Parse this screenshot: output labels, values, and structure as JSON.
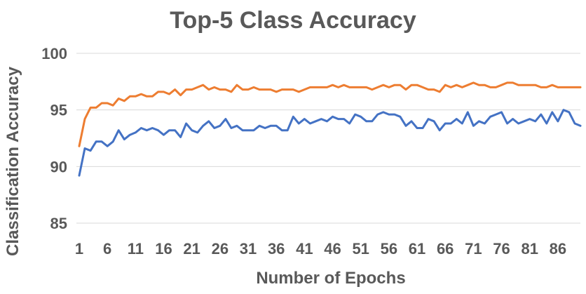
{
  "chart_data": {
    "type": "line",
    "title": "Top-5 Class Accuracy",
    "xlabel": "Number of Epochs",
    "ylabel": "Classification Accuracy",
    "ylim": [
      85,
      100
    ],
    "yticks": [
      "85",
      "90",
      "95",
      "100"
    ],
    "xtick_labels": [
      "1",
      "6",
      "11",
      "16",
      "21",
      "26",
      "31",
      "36",
      "41",
      "46",
      "51",
      "56",
      "61",
      "66",
      "71",
      "76",
      "81",
      "86"
    ],
    "grid": true,
    "legend": "none",
    "x_start": 1,
    "x_end": 90,
    "series": [
      {
        "color": "#ED7D31",
        "values": [
          91.8,
          94.2,
          95.2,
          95.2,
          95.6,
          95.6,
          95.4,
          96.0,
          95.8,
          96.2,
          96.2,
          96.4,
          96.2,
          96.2,
          96.6,
          96.6,
          96.4,
          96.8,
          96.3,
          96.8,
          96.8,
          97.0,
          97.2,
          96.8,
          97.0,
          96.8,
          96.8,
          96.6,
          97.2,
          96.8,
          96.8,
          97.0,
          96.8,
          96.8,
          96.8,
          96.6,
          96.8,
          96.8,
          96.8,
          96.6,
          96.8,
          97.0,
          97.0,
          97.0,
          97.0,
          97.2,
          97.0,
          97.2,
          97.0,
          97.0,
          97.0,
          97.0,
          96.8,
          97.0,
          97.2,
          97.0,
          97.2,
          97.2,
          96.8,
          97.2,
          97.2,
          97.0,
          96.8,
          96.8,
          96.6,
          97.2,
          97.0,
          97.2,
          97.0,
          97.2,
          97.4,
          97.2,
          97.2,
          97.0,
          97.0,
          97.2,
          97.4,
          97.4,
          97.2,
          97.2,
          97.2,
          97.2,
          97.0,
          97.0,
          97.2,
          97.0,
          97.0,
          97.0,
          97.0,
          97.0
        ]
      },
      {
        "color": "#4472C4",
        "values": [
          89.2,
          91.6,
          91.4,
          92.2,
          92.2,
          91.8,
          92.2,
          93.2,
          92.4,
          92.8,
          93.0,
          93.4,
          93.2,
          93.4,
          93.2,
          92.8,
          93.2,
          93.2,
          92.6,
          93.8,
          93.2,
          93.0,
          93.6,
          94.0,
          93.4,
          93.6,
          94.2,
          93.4,
          93.6,
          93.2,
          93.2,
          93.2,
          93.6,
          93.4,
          93.6,
          93.6,
          93.2,
          93.2,
          94.4,
          93.8,
          94.2,
          93.8,
          94.0,
          94.2,
          94.0,
          94.4,
          94.2,
          94.2,
          93.8,
          94.6,
          94.4,
          94.0,
          94.0,
          94.6,
          94.8,
          94.6,
          94.6,
          94.4,
          93.6,
          94.0,
          93.4,
          93.4,
          94.2,
          94.0,
          93.2,
          93.8,
          93.8,
          94.2,
          93.8,
          94.8,
          93.6,
          94.0,
          93.8,
          94.4,
          94.6,
          94.8,
          93.8,
          94.2,
          93.8,
          94.0,
          94.2,
          94.0,
          94.6,
          93.8,
          94.8,
          94.0,
          95.0,
          94.8,
          93.8,
          93.6
        ]
      }
    ]
  }
}
